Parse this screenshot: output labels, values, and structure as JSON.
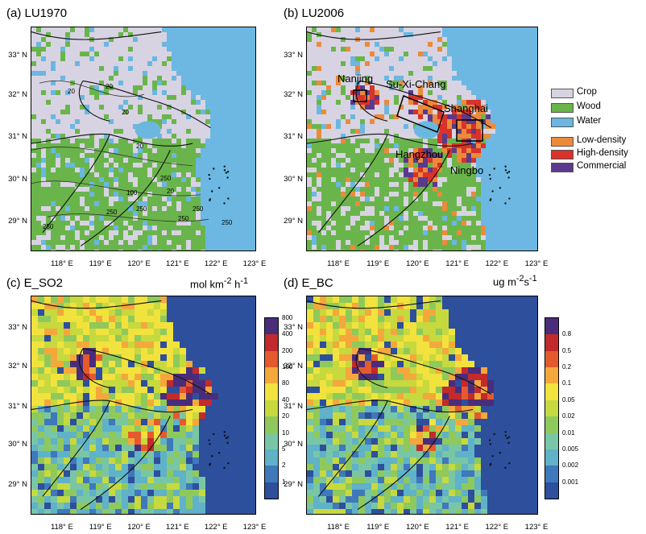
{
  "panels": {
    "a": {
      "title": "(a) LU1970"
    },
    "b": {
      "title": "(b) LU2006"
    },
    "c": {
      "title": "(c) E_SO2",
      "unit_html": "mol km<sup>-2</sup> h<sup>-1</sup>"
    },
    "d": {
      "title": "(d) E_BC",
      "unit_html": "ug m<sup>-2</sup>s<sup>-1</sup>"
    }
  },
  "lat_labels": [
    "33° N",
    "32° N",
    "31° N",
    "30° N",
    "29° N"
  ],
  "lon_labels": [
    "118° E",
    "119° E",
    "120° E",
    "121° E",
    "122° E",
    "123° E"
  ],
  "landuse_legend": [
    {
      "label": "Crop",
      "color": "#d8d3e2"
    },
    {
      "label": "Wood",
      "color": "#6ab54b"
    },
    {
      "label": "Water",
      "color": "#6bb7e0"
    },
    {
      "label": "Low-density",
      "color": "#ec8a3b"
    },
    {
      "label": "High-density",
      "color": "#d8322a"
    },
    {
      "label": "Commercial",
      "color": "#5b3a8c"
    }
  ],
  "cities": [
    "Nanjing",
    "Su-Xi-Chang",
    "Shanghai",
    "Hangzhou",
    "Ningbo"
  ],
  "contour_labels": [
    "20",
    "20",
    "20",
    "20",
    "100",
    "250",
    "20",
    "250",
    "250",
    "250",
    "250",
    "250",
    "250"
  ],
  "so2_colorbar": [
    "1",
    "2",
    "5",
    "10",
    "20",
    "40",
    "80",
    "100",
    "200",
    "400",
    "800"
  ],
  "bc_colorbar": [
    "0.001",
    "0.002",
    "0.005",
    "0.01",
    "0.02",
    "0.05",
    "0.1",
    "0.2",
    "0.5",
    "0.8"
  ],
  "colors": {
    "sea": "#6cb8e3",
    "emission_sea": "#2d4f9c",
    "scale": [
      "#2d4f9c",
      "#3f78bb",
      "#5fb2c8",
      "#79c6a6",
      "#8fc95b",
      "#c6d93e",
      "#f2e23d",
      "#f4a83c",
      "#e45a2e",
      "#c22a2b",
      "#4a2d7a"
    ]
  }
}
